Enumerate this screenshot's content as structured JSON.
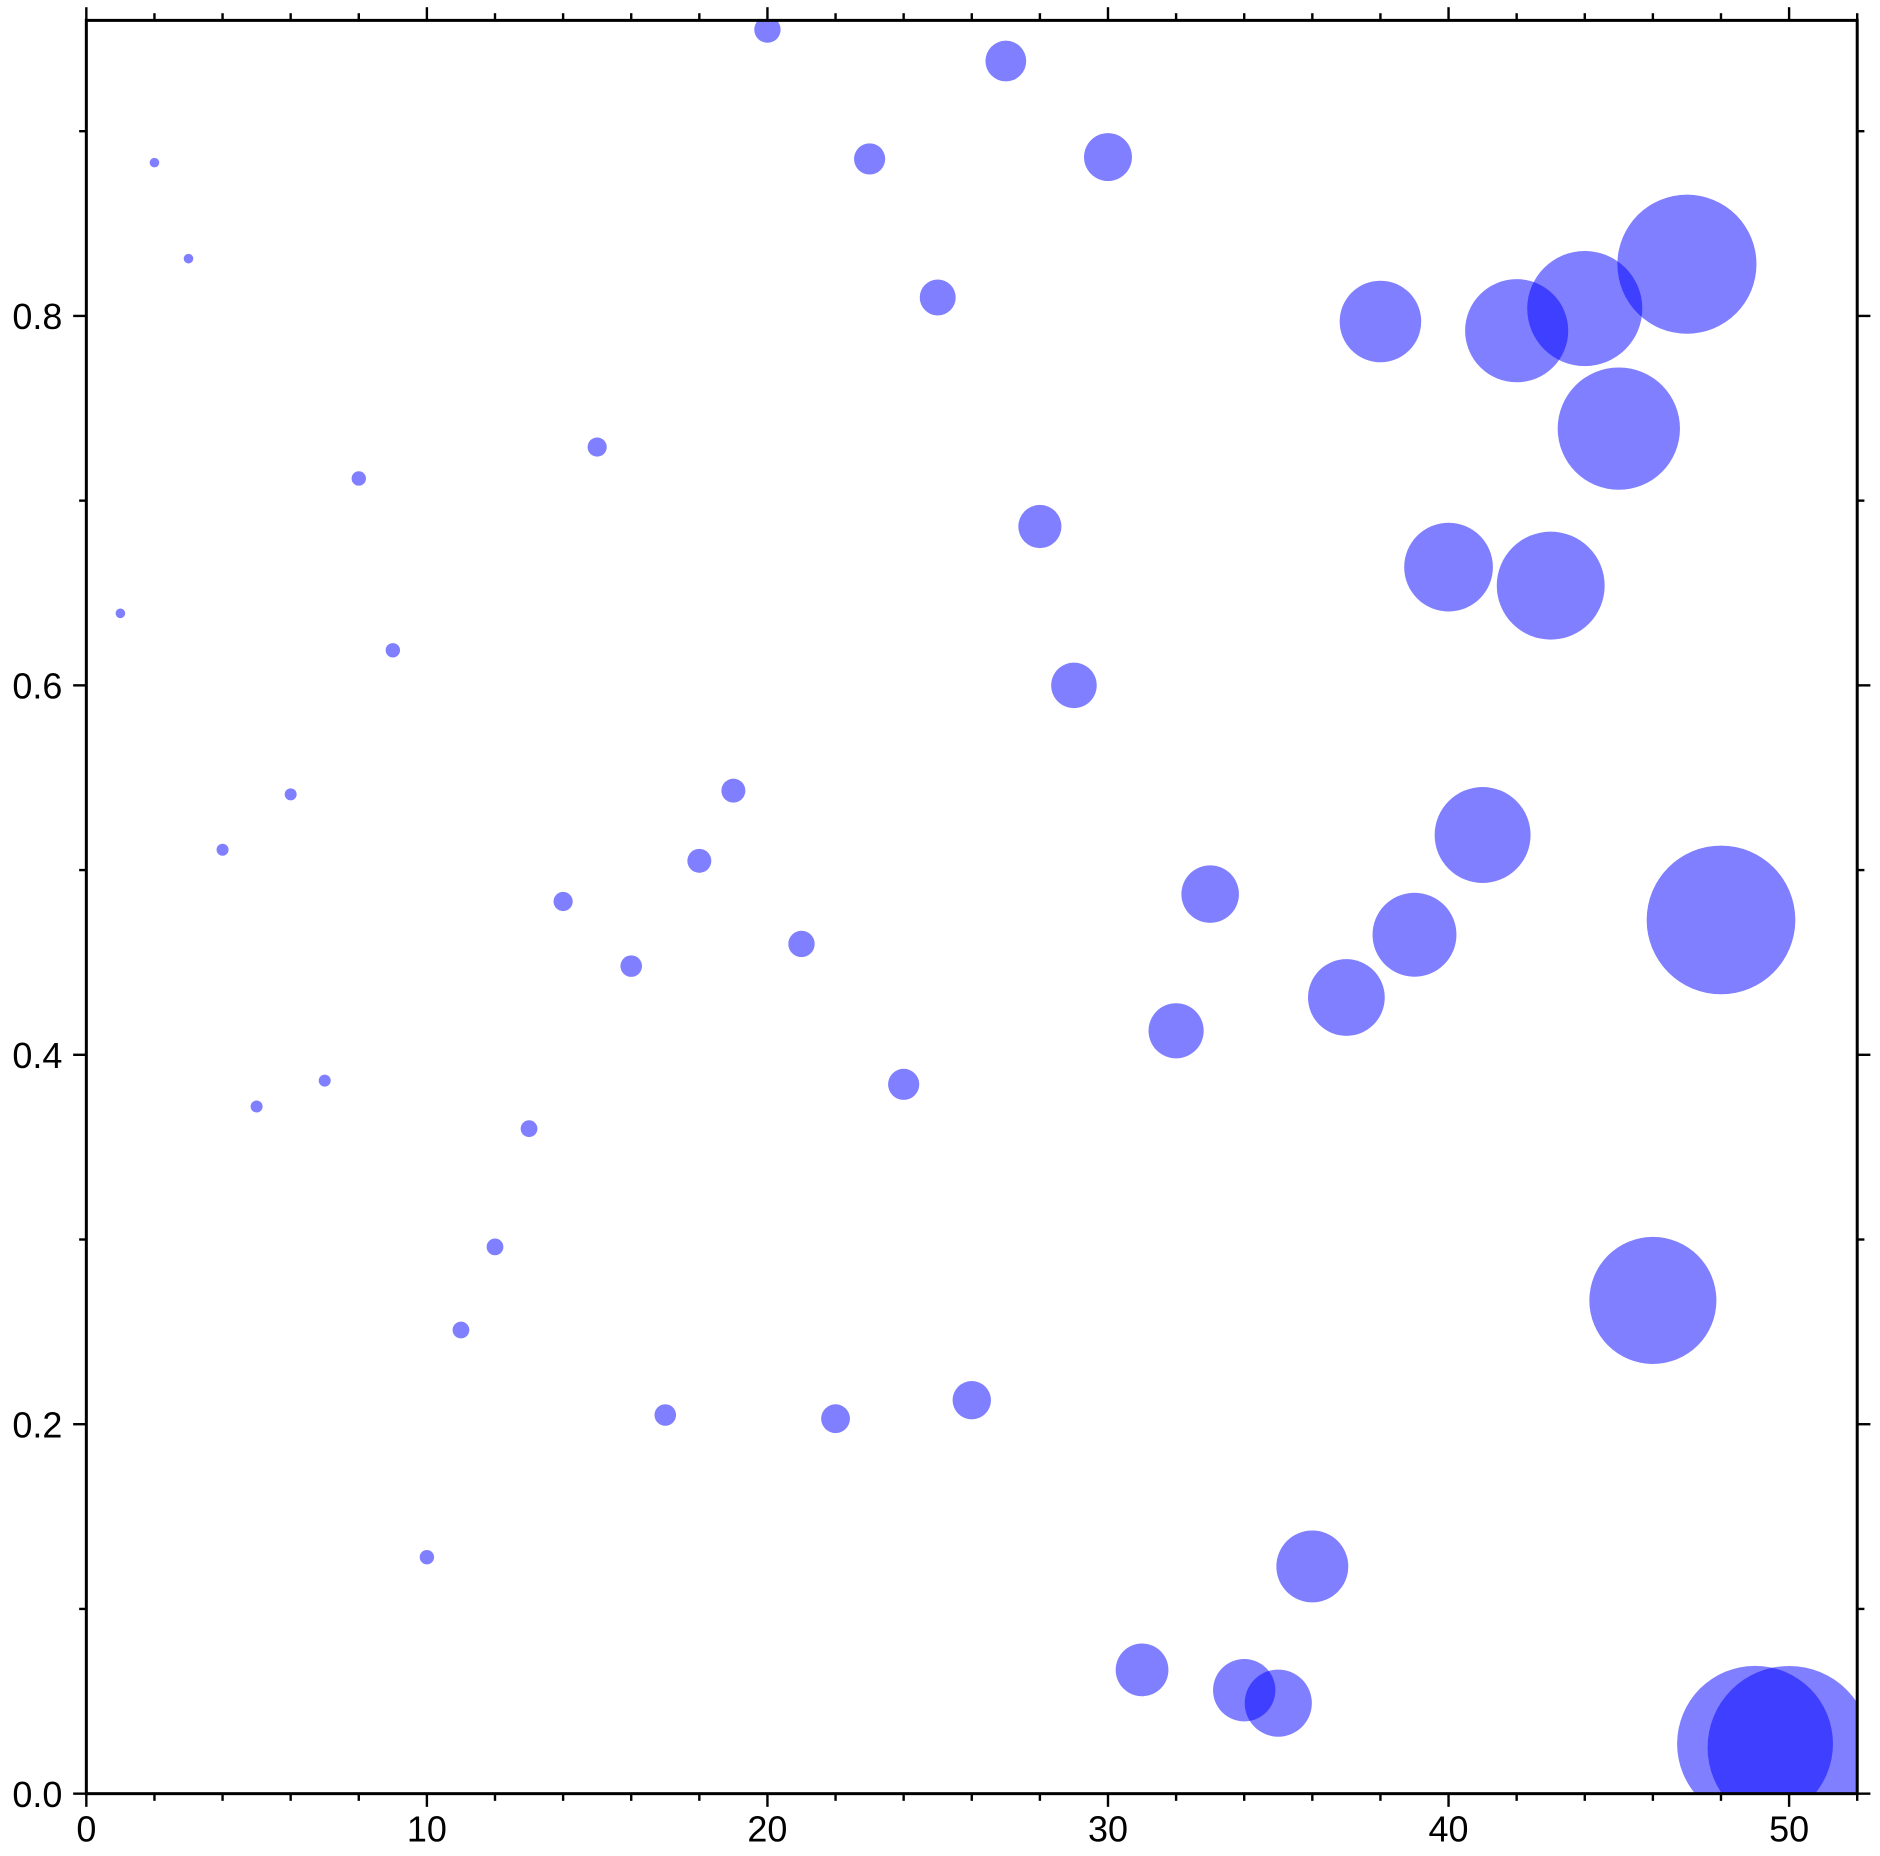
{
  "chart_data": {
    "type": "scatter",
    "color": "#0000ff",
    "opacity": 0.5,
    "x": [
      1,
      2,
      3,
      4,
      5,
      6,
      7,
      8,
      9,
      10,
      11,
      12,
      13,
      14,
      15,
      16,
      17,
      18,
      19,
      20,
      21,
      22,
      23,
      24,
      25,
      26,
      27,
      28,
      29,
      30,
      31,
      32,
      33,
      34,
      35,
      36,
      37,
      38,
      39,
      40,
      41,
      42,
      43,
      44,
      45,
      46,
      47,
      48,
      49,
      50
    ],
    "y": [
      0.639,
      0.883,
      0.831,
      0.511,
      0.372,
      0.541,
      0.386,
      0.712,
      0.619,
      0.128,
      0.251,
      0.296,
      0.36,
      0.483,
      0.729,
      0.448,
      0.205,
      0.505,
      0.543,
      0.955,
      0.46,
      0.203,
      0.885,
      0.384,
      0.81,
      0.213,
      0.938,
      0.686,
      0.6,
      0.886,
      0.067,
      0.413,
      0.487,
      0.056,
      0.049,
      0.123,
      0.431,
      0.797,
      0.465,
      0.664,
      0.519,
      0.792,
      0.654,
      0.804,
      0.739,
      0.267,
      0.828,
      0.473,
      0.027,
      0.025
    ],
    "sizes": [
      4,
      4,
      4,
      5,
      5,
      5,
      5,
      6,
      6,
      6,
      7,
      7,
      7,
      8,
      8,
      9,
      9,
      10,
      10,
      11,
      11,
      12,
      13,
      13,
      15,
      16,
      17,
      18,
      19,
      20,
      22,
      23,
      24,
      26,
      28,
      30,
      32,
      34,
      35,
      37,
      40,
      43,
      45,
      48,
      51,
      53,
      58,
      62,
      65,
      68
    ],
    "xlim": [
      0,
      52
    ],
    "ylim": [
      0,
      0.96
    ],
    "xticks": [
      0,
      10,
      20,
      30,
      40,
      50
    ],
    "yticks": [
      {
        "value": 0,
        "label": "0.0"
      },
      0.2,
      0.4,
      0.6,
      0.8
    ],
    "xminorticks": [
      2,
      4,
      6,
      8,
      12,
      14,
      16,
      18,
      22,
      24,
      26,
      28,
      32,
      34,
      36,
      38,
      42,
      44,
      46,
      48,
      52
    ],
    "yminorticks": [
      0.1,
      0.3,
      0.5,
      0.7,
      0.9
    ]
  }
}
